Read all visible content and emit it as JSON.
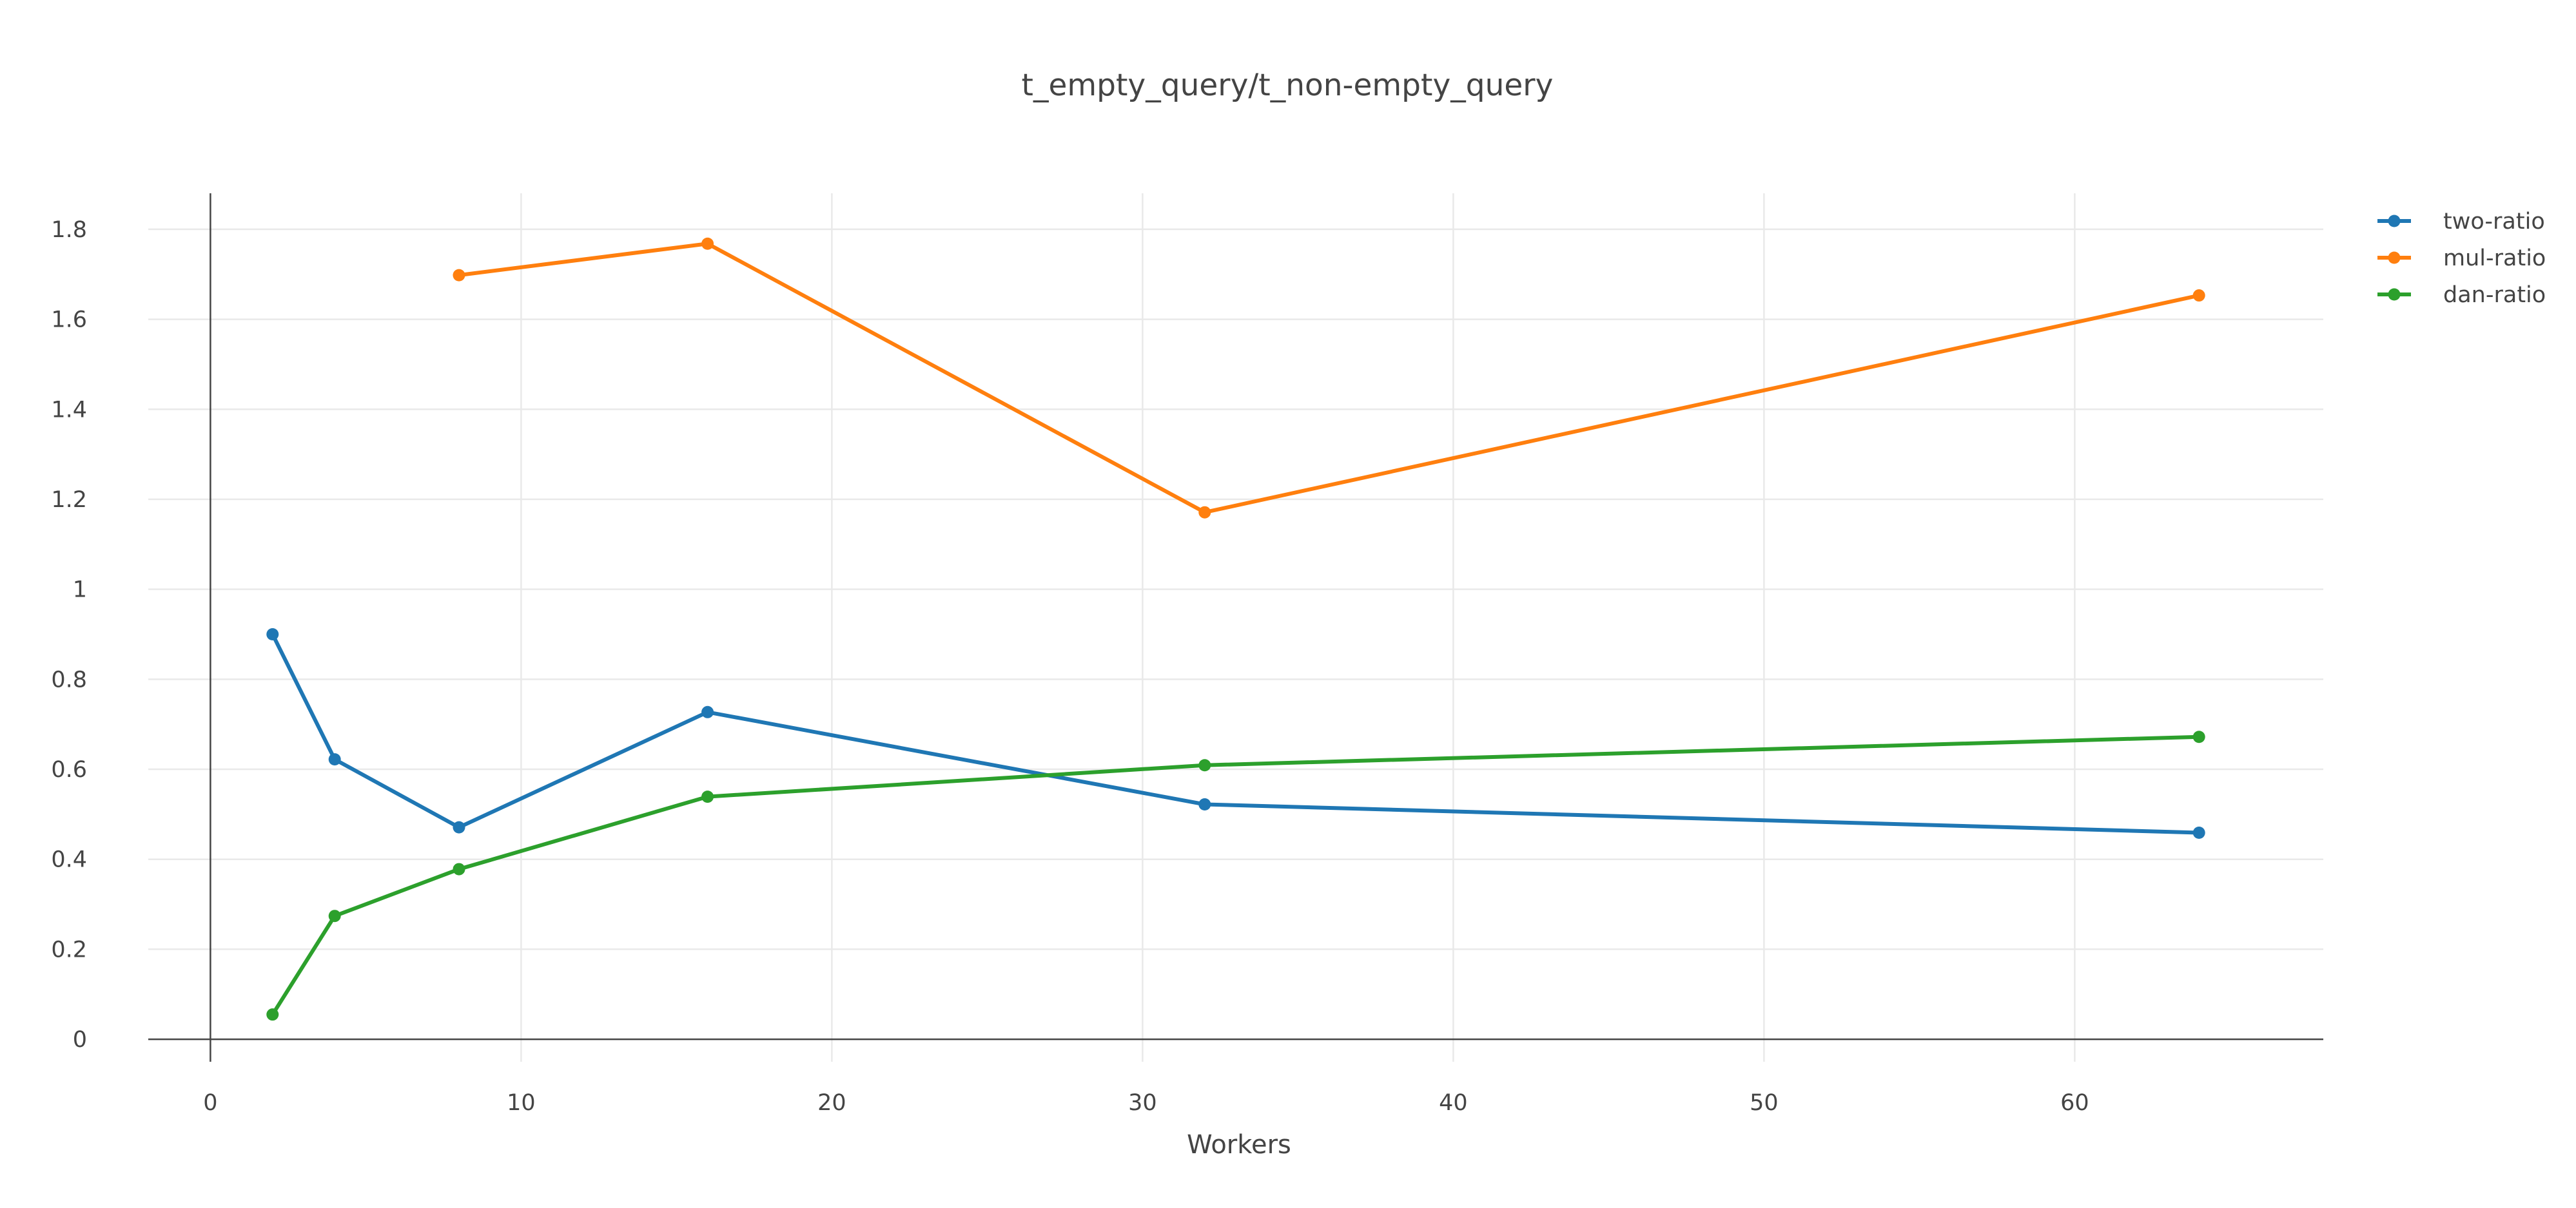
{
  "chart_data": {
    "type": "line",
    "title": "t_empty_query/t_non-empty_query",
    "xlabel": "Workers",
    "ylabel": "",
    "xlim": [
      -2,
      68
    ],
    "ylim": [
      -0.05,
      1.88
    ],
    "xticks": [
      0,
      10,
      20,
      30,
      40,
      50,
      60
    ],
    "yticks": [
      0,
      0.2,
      0.4,
      0.6,
      0.8,
      1,
      1.2,
      1.4,
      1.6,
      1.8
    ],
    "xtick_labels": [
      "0",
      "10",
      "20",
      "30",
      "40",
      "50",
      "60"
    ],
    "ytick_labels": [
      "0",
      "0.2",
      "0.4",
      "0.6",
      "0.8",
      "1",
      "1.2",
      "1.4",
      "1.6",
      "1.8"
    ],
    "grid": true,
    "legend_position": "top-right",
    "series": [
      {
        "name": "two-ratio",
        "color": "#1f77b4",
        "x": [
          2,
          4,
          8,
          16,
          32,
          64
        ],
        "y": [
          0.9,
          0.622,
          0.471,
          0.727,
          0.522,
          0.459
        ]
      },
      {
        "name": "mul-ratio",
        "color": "#ff7f0e",
        "x": [
          8,
          16,
          32,
          64
        ],
        "y": [
          1.698,
          1.768,
          1.171,
          1.653
        ]
      },
      {
        "name": "dan-ratio",
        "color": "#2ca02c",
        "x": [
          2,
          4,
          8,
          16,
          32,
          64
        ],
        "y": [
          0.055,
          0.274,
          0.378,
          0.539,
          0.609,
          0.672
        ]
      }
    ]
  }
}
